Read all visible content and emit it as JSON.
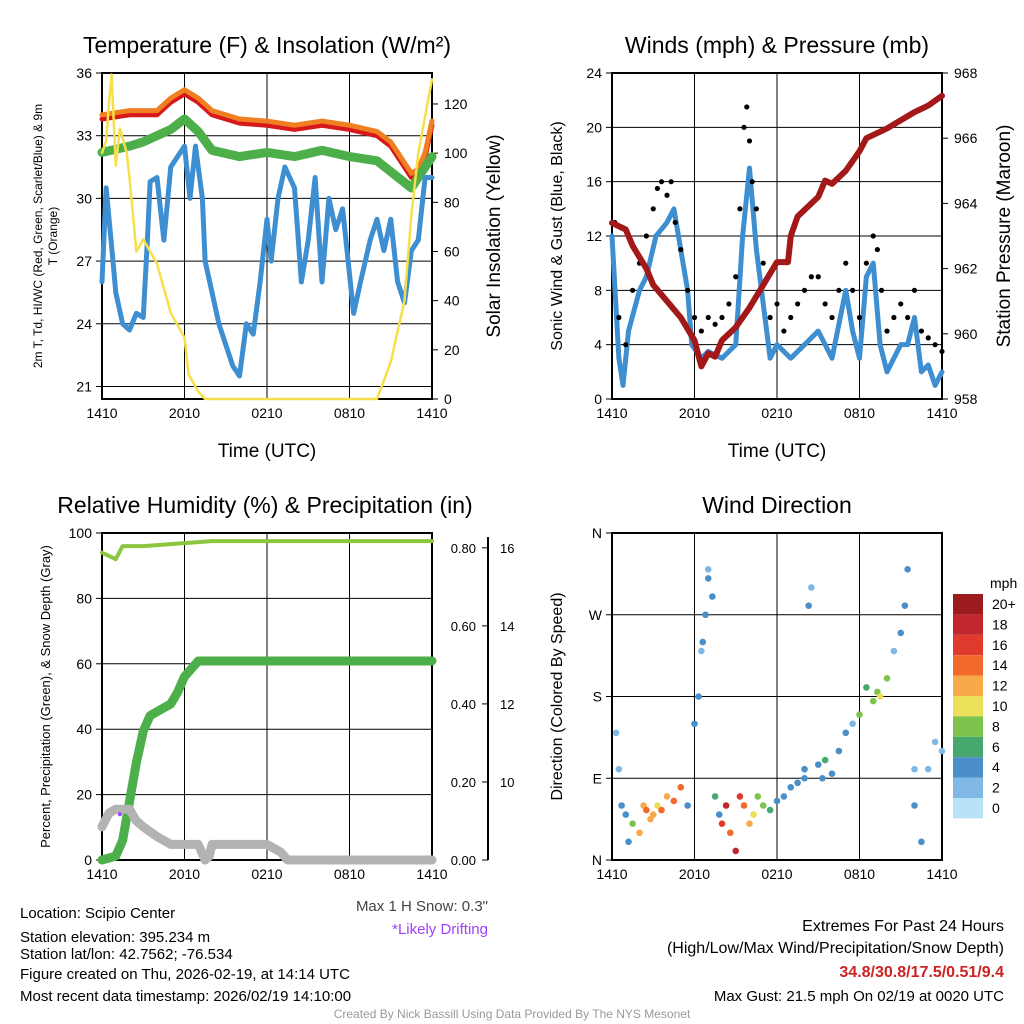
{
  "colors": {
    "red": "#d7191c",
    "orange": "#f07f22",
    "green": "#4daf4a",
    "blue": "#3e8fd1",
    "yellow": "#f5e04a",
    "maroon": "#a31818",
    "gray": "#b3b3b3",
    "lightgreen": "#8cc63f",
    "purple": "#a040ff",
    "extremes": "#cc2222"
  },
  "chart_data": [
    {
      "type": "line",
      "title": "Temperature (F) & Insolation (W/m²)",
      "xlabel": "Time (UTC)",
      "ylabel": "2m T, Td, HI/WC (Red, Green, Scarlet/Blue) & 9m T (Orange)",
      "y2label": "Solar Insolation (Yellow)",
      "xticks": [
        "1410",
        "2010",
        "0210",
        "0810",
        "1410"
      ],
      "yticks": [
        21,
        24,
        27,
        30,
        33,
        36
      ],
      "y2ticks": [
        0,
        20,
        40,
        60,
        80,
        100,
        120
      ],
      "ylim": [
        20.4,
        36
      ],
      "y2lim": [
        0,
        132.6
      ],
      "xlim": [
        0,
        24
      ],
      "series": [
        {
          "name": "2m T",
          "color": "red",
          "axis": "left",
          "x": [
            0,
            2,
            4,
            5,
            6,
            7,
            8,
            10,
            12,
            14,
            16,
            18,
            20,
            21,
            22.5,
            23,
            23.5,
            24
          ],
          "y": [
            33.8,
            34,
            34,
            34.6,
            35,
            34.6,
            34,
            33.6,
            33.5,
            33.3,
            33.5,
            33.3,
            33,
            32.5,
            31,
            31.2,
            32,
            33.5
          ]
        },
        {
          "name": "9m T",
          "color": "orange",
          "axis": "left",
          "x": [
            0,
            2,
            4,
            5,
            6,
            7,
            8,
            10,
            12,
            14,
            16,
            18,
            20,
            21,
            22.5,
            23,
            23.5,
            24
          ],
          "y": [
            34,
            34.2,
            34.2,
            34.8,
            35.2,
            34.8,
            34.2,
            33.8,
            33.7,
            33.5,
            33.7,
            33.5,
            33.2,
            32.7,
            31.2,
            31.4,
            32.2,
            33.7
          ]
        },
        {
          "name": "Td",
          "color": "green",
          "axis": "left",
          "x": [
            0,
            2,
            3,
            5,
            6,
            7,
            8,
            10,
            12,
            14,
            16,
            18,
            20,
            22.5,
            23.5,
            24
          ],
          "y": [
            32.2,
            32.5,
            32.7,
            33.3,
            33.8,
            33.2,
            32.3,
            32,
            32.2,
            32,
            32.3,
            32,
            31.8,
            30.5,
            31.5,
            32
          ]
        },
        {
          "name": "HI/WC",
          "color": "blue",
          "axis": "left",
          "x": [
            0,
            0.3,
            0.8,
            1,
            1.5,
            2,
            2.5,
            3,
            3.3,
            3.5,
            4,
            4.5,
            5,
            6,
            6.4,
            6.8,
            7.3,
            7.5,
            8.5,
            9.5,
            10,
            10.5,
            11,
            11.5,
            12,
            12.3,
            12.8,
            13.3,
            14,
            14.5,
            15,
            15.5,
            16,
            16.5,
            17,
            17.5,
            18.3,
            18.8,
            19.5,
            20,
            20.5,
            21,
            21.5,
            22,
            22.5,
            23,
            23.5,
            24
          ],
          "y": [
            26,
            30.5,
            27,
            25.5,
            24,
            23.7,
            24.5,
            24.3,
            28,
            30.8,
            31,
            28,
            31.5,
            32.5,
            30,
            32.5,
            30,
            27,
            24,
            22,
            21.5,
            24,
            23.5,
            26,
            29,
            27,
            30,
            31.5,
            30.5,
            26,
            28,
            31,
            26,
            30,
            28.5,
            29.5,
            24.5,
            26,
            28,
            29,
            27.5,
            29,
            26,
            25,
            27.5,
            28,
            31,
            31
          ]
        },
        {
          "name": "Solar Insolation",
          "color": "yellow",
          "axis": "right",
          "x": [
            0,
            0.3,
            0.5,
            0.7,
            1,
            1.3,
            1.8,
            2,
            2.5,
            3,
            3.5,
            4,
            4.5,
            5,
            5.5,
            6,
            6.3,
            7,
            7.5,
            20,
            21,
            22,
            22.5,
            23,
            23.5,
            24
          ],
          "y": [
            100,
            105,
            120,
            132,
            95,
            110,
            100,
            90,
            60,
            65,
            60,
            55,
            45,
            35,
            30,
            25,
            10,
            3,
            0,
            0,
            15,
            40,
            75,
            100,
            115,
            130
          ]
        }
      ]
    },
    {
      "type": "line",
      "title": "Winds (mph) & Pressure (mb)",
      "xlabel": "Time (UTC)",
      "ylabel": "Sonic Wind & Gust (Blue, Black)",
      "y2label": "Station Pressure (Maroon)",
      "xticks": [
        "1410",
        "2010",
        "0210",
        "0810",
        "1410"
      ],
      "yticks": [
        0,
        4,
        8,
        12,
        16,
        20,
        24
      ],
      "y2ticks": [
        958,
        960,
        962,
        964,
        966,
        968
      ],
      "ylim": [
        0,
        24
      ],
      "y2lim": [
        958,
        968
      ],
      "xlim": [
        0,
        24
      ],
      "series": [
        {
          "name": "Sonic Wind",
          "color": "blue",
          "axis": "left",
          "x": [
            0,
            0.5,
            0.8,
            1.2,
            2,
            2.5,
            3.2,
            4,
            4.5,
            5,
            5.5,
            5.8,
            6.5,
            7,
            8,
            9,
            9.5,
            10,
            10.5,
            11,
            11.5,
            12,
            13,
            14,
            15,
            15.5,
            16,
            17,
            17.5,
            18,
            18.5,
            19,
            19.5,
            20,
            20.5,
            21,
            21.5,
            22,
            22.5,
            23,
            23.5,
            24
          ],
          "y": [
            12,
            3,
            1,
            5,
            8,
            9,
            12,
            13,
            14,
            11,
            8,
            4,
            3,
            3.5,
            3,
            4,
            12,
            17,
            11,
            7,
            3,
            4,
            3,
            4,
            5,
            4,
            3,
            8,
            5,
            3,
            9,
            10,
            4,
            2,
            3,
            4,
            4,
            6,
            2,
            2.5,
            1,
            2
          ]
        },
        {
          "name": "Gust",
          "color": "black",
          "axis": "left",
          "type": "scatter",
          "x": [
            0.2,
            0.5,
            1,
            1.5,
            2,
            2.5,
            3,
            3.3,
            3.6,
            4,
            4.3,
            4.6,
            5,
            5.5,
            6,
            6.5,
            7,
            7.5,
            8,
            8.5,
            9,
            9.3,
            9.6,
            9.8,
            10,
            10.2,
            10.5,
            11,
            11.5,
            12,
            12.5,
            13,
            13.5,
            14,
            14.5,
            15,
            15.5,
            16,
            16.5,
            17,
            17.5,
            18,
            18.5,
            19,
            19.3,
            19.6,
            20,
            20.5,
            21,
            21.5,
            22,
            22.5,
            23,
            23.5,
            24
          ],
          "y": [
            13,
            6,
            4,
            8,
            10,
            12,
            14,
            15.5,
            16,
            15,
            16,
            13,
            11,
            8,
            6,
            5,
            6,
            5.5,
            6,
            7,
            9,
            14,
            20,
            21.5,
            19,
            16,
            14,
            10,
            6,
            7,
            5,
            6,
            7,
            8,
            9,
            9,
            7,
            6,
            8,
            10,
            8,
            6,
            10,
            12,
            11,
            8,
            5,
            6,
            7,
            6,
            8,
            5,
            4.5,
            4,
            3.5
          ]
        },
        {
          "name": "Station Pressure",
          "color": "maroon",
          "axis": "right",
          "x": [
            0,
            1,
            1.5,
            2.5,
            3,
            4,
            5,
            6,
            6.5,
            7,
            7.5,
            8,
            9,
            10,
            11,
            12,
            12.8,
            13,
            13.5,
            14,
            15,
            15.5,
            16,
            17,
            18,
            18.5,
            20,
            22,
            23,
            24
          ],
          "y": [
            963.4,
            963.2,
            962.7,
            962,
            961.5,
            961,
            960.5,
            959.8,
            959,
            959.4,
            959.3,
            959.8,
            960.2,
            960.8,
            961.5,
            962.2,
            962.2,
            963,
            963.6,
            963.8,
            964.2,
            964.7,
            964.6,
            965,
            965.6,
            966,
            966.3,
            966.8,
            967,
            967.3
          ]
        }
      ]
    },
    {
      "type": "line",
      "title": "Relative Humidity (%) & Precipitation (in)",
      "xlabel": "",
      "ylabel": "Percent, Precipitation (Green), & Snow Depth (Gray)",
      "xticks": [
        "1410",
        "2010",
        "0210",
        "0810",
        "1410"
      ],
      "yticks": [
        0,
        20,
        40,
        60,
        80,
        100
      ],
      "y2ticks": [
        "0.00",
        "0.20",
        "0.40",
        "0.60",
        "0.80"
      ],
      "y3ticks": [
        10,
        12,
        14,
        16
      ],
      "ylim": [
        0,
        100
      ],
      "y2lim": [
        0,
        0.838
      ],
      "y3lim": [
        8,
        16.38
      ],
      "xlim": [
        0,
        24
      ],
      "series": [
        {
          "name": "Relative Humidity",
          "color": "lightgreen",
          "axis": "left",
          "x": [
            0,
            0.5,
            1,
            1.5,
            3,
            8,
            16,
            24
          ],
          "y": [
            94,
            93,
            92,
            96,
            96,
            97.5,
            97.5,
            97.5
          ]
        },
        {
          "name": "Precipitation",
          "color": "green",
          "axis": "right",
          "x": [
            0,
            1,
            1.5,
            2,
            2.5,
            3,
            3.5,
            4,
            5,
            5.5,
            6,
            6.5,
            7,
            10,
            16,
            24
          ],
          "y": [
            0,
            0.01,
            0.05,
            0.15,
            0.25,
            0.33,
            0.37,
            0.38,
            0.4,
            0.43,
            0.47,
            0.49,
            0.51,
            0.51,
            0.51,
            0.51
          ]
        },
        {
          "name": "Snow Depth",
          "color": "gray",
          "axis": "right2",
          "x": [
            0,
            0.5,
            1,
            2,
            2.5,
            3,
            4,
            5,
            7,
            7.5,
            7.8,
            8,
            12,
            13,
            13.5,
            24
          ],
          "y": [
            8.85,
            9.2,
            9.3,
            9.3,
            9,
            8.85,
            8.6,
            8.4,
            8.4,
            8,
            8.1,
            8.4,
            8.4,
            8.2,
            8,
            8
          ]
        }
      ],
      "annotations": {
        "max_snow": "Max 1 H Snow: 0.3\"",
        "drifting": "*Likely Drifting",
        "drift_marker": {
          "x": 1.3,
          "y": 14
        }
      }
    },
    {
      "type": "scatter",
      "title": "Wind Direction",
      "ylabel": "Direction (Colored By Speed)",
      "xticks": [
        "1410",
        "2010",
        "0210",
        "0810",
        "1410"
      ],
      "yticks": [
        "N",
        "E",
        "S",
        "W",
        "N"
      ],
      "ylim": [
        0,
        360
      ],
      "xlim": [
        0,
        24
      ],
      "legend": {
        "title": "mph",
        "labels": [
          "20+",
          "18",
          "16",
          "14",
          "12",
          "10",
          "8",
          "6",
          "4",
          "2",
          "0"
        ],
        "colors": [
          "#9b1b1e",
          "#c1272d",
          "#e03a2e",
          "#f26a2b",
          "#f9a94a",
          "#ebe05a",
          "#7dc24b",
          "#47a86e",
          "#4b8fc8",
          "#80b8e5",
          "#b8e2f7"
        ]
      },
      "points": {
        "x": [
          0.3,
          0.5,
          0.7,
          1,
          1.2,
          1.5,
          2,
          2.3,
          2.5,
          2.8,
          3,
          3.3,
          3.6,
          4,
          4.5,
          5,
          5.5,
          6,
          6.3,
          6.5,
          6.6,
          6.8,
          7,
          7,
          7.3,
          7.5,
          7.8,
          8,
          8.3,
          8.6,
          9,
          9.3,
          9.6,
          10,
          10.3,
          10.6,
          11,
          11.5,
          12,
          12.5,
          13,
          13.5,
          14,
          14,
          14.3,
          14.5,
          15,
          15.3,
          15.5,
          16,
          16.5,
          17,
          17.5,
          18,
          18.5,
          19,
          19.3,
          19.5,
          20,
          20.5,
          21,
          21.3,
          21.5,
          22,
          22,
          22.5,
          23,
          23.5,
          24
        ],
        "y": [
          140,
          100,
          60,
          50,
          20,
          40,
          30,
          60,
          55,
          45,
          50,
          60,
          55,
          70,
          65,
          80,
          60,
          150,
          180,
          230,
          240,
          270,
          310,
          320,
          290,
          70,
          50,
          40,
          60,
          30,
          10,
          70,
          60,
          40,
          50,
          70,
          60,
          55,
          65,
          70,
          80,
          85,
          90,
          100,
          280,
          300,
          105,
          90,
          110,
          95,
          120,
          140,
          150,
          160,
          190,
          175,
          185,
          180,
          200,
          230,
          250,
          280,
          320,
          100,
          60,
          20,
          100,
          130,
          120
        ],
        "speed": [
          1,
          2,
          3,
          4,
          4,
          8,
          12,
          11,
          13,
          11,
          12,
          10,
          13,
          12,
          13,
          14,
          4,
          3,
          3,
          2,
          3,
          3,
          3,
          2,
          4,
          5,
          4,
          16,
          17,
          14,
          18,
          16,
          14,
          12,
          10,
          8,
          8,
          6,
          4,
          3,
          3,
          4,
          3,
          4,
          3,
          2,
          3,
          4,
          6,
          4,
          3,
          3,
          2,
          8,
          6,
          7,
          8,
          9,
          7,
          2,
          3,
          4,
          3,
          2,
          3,
          3,
          2,
          1,
          2
        ]
      }
    }
  ],
  "footer": {
    "location": "Location: Scipio Center",
    "elevation": "Station elevation: 395.234 m",
    "latlon": "Station lat/lon: 42.7562; -76.534",
    "created": "Figure created on Thu, 2026-02-19, at 14:14 UTC",
    "recent": "Most recent data timestamp: 2026/02/19 14:10:00",
    "extremes_title": "Extremes For Past 24 Hours",
    "extremes_sub": "(High/Low/Max Wind/Precipitation/Snow Depth)",
    "extremes_values": "34.8/30.8/17.5/0.51/9.4",
    "max_gust": "Max Gust: 21.5 mph On 02/19 at 0020 UTC",
    "credit": "Created By Nick Bassill Using Data Provided By The NYS Mesonet"
  }
}
